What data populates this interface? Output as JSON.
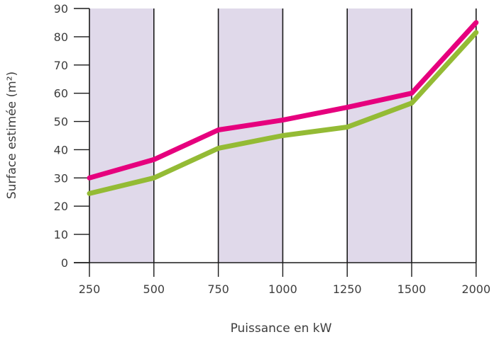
{
  "chart_data": {
    "type": "line",
    "x": [
      250,
      500,
      750,
      1000,
      1250,
      1500,
      2000
    ],
    "x_tick_labels": [
      "250",
      "500",
      "750",
      "1000",
      "1250",
      "1500",
      "2000"
    ],
    "y_ticks": [
      0,
      10,
      20,
      30,
      40,
      50,
      60,
      70,
      80,
      90
    ],
    "ylim": [
      0,
      90
    ],
    "xlabel": "Puissance en kW",
    "ylabel": "Surface estimée (m²)",
    "grid": "vertical lines at each x category, alternating shaded bands",
    "series": [
      {
        "values": [
          30,
          36.5,
          47,
          50.5,
          55,
          60,
          85
        ],
        "color": "#e6007e"
      },
      {
        "values": [
          24.5,
          30,
          40.5,
          45,
          48,
          56.5,
          81.5
        ],
        "color": "#94bb35"
      }
    ],
    "colors": {
      "band": "#e0d9ea",
      "axis": "#1a1a1a"
    }
  }
}
